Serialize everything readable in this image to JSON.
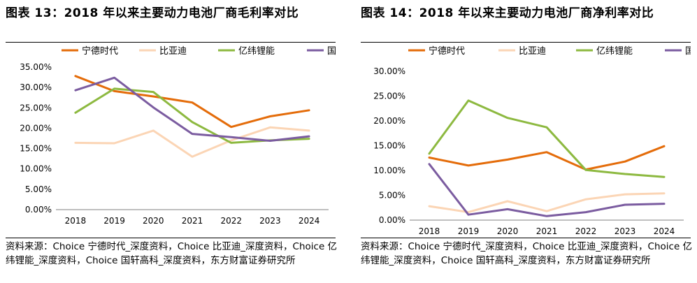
{
  "chart_data": [
    {
      "type": "line",
      "title": "图表 13：2018 年以来主要动力电池厂商毛利率对比",
      "xlabel": "",
      "ylabel": "",
      "categories": [
        "2018",
        "2019",
        "2020",
        "2021",
        "2022",
        "2023",
        "2024"
      ],
      "ylim": [
        0,
        35
      ],
      "yticks": [
        "0.00%",
        "5.00%",
        "10.00%",
        "15.00%",
        "20.00%",
        "25.00%",
        "30.00%",
        "35.00%"
      ],
      "legend_position": "top",
      "grid": false,
      "series": [
        {
          "name": "宁德时代",
          "color": "#E46C0A",
          "values": [
            32.8,
            29.1,
            27.8,
            26.3,
            20.3,
            22.9,
            24.4
          ]
        },
        {
          "name": "比亚迪",
          "color": "#FBD5B5",
          "values": [
            16.4,
            16.3,
            19.4,
            13.0,
            17.0,
            20.2,
            19.4
          ]
        },
        {
          "name": "亿纬锂能",
          "color": "#8DB940",
          "values": [
            23.8,
            29.7,
            28.9,
            21.5,
            16.4,
            17.0,
            17.4
          ]
        },
        {
          "name": "国轩高科",
          "color": "#7B5CA0",
          "values": [
            29.3,
            32.4,
            25.1,
            18.6,
            17.8,
            16.9,
            18.0
          ]
        }
      ],
      "source": "资料来源：Choice 宁德时代_深度资料，Choice 比亚迪_深度资料，Choice 亿纬锂能_深度资料，Choice 国轩高科_深度资料，东方财富证券研究所"
    },
    {
      "type": "line",
      "title": "图表 14：2018 年以来主要动力电池厂商净利率对比",
      "xlabel": "",
      "ylabel": "",
      "categories": [
        "2018",
        "2019",
        "2020",
        "2021",
        "2022",
        "2023",
        "2024"
      ],
      "ylim": [
        0,
        30
      ],
      "yticks": [
        "0.00%",
        "5.00%",
        "10.00%",
        "15.00%",
        "20.00%",
        "25.00%",
        "30.00%"
      ],
      "legend_position": "top",
      "grid": false,
      "series": [
        {
          "name": "宁德时代",
          "color": "#E46C0A",
          "values": [
            12.6,
            11.0,
            12.2,
            13.7,
            10.2,
            11.8,
            14.9
          ]
        },
        {
          "name": "比亚迪",
          "color": "#FBD5B5",
          "values": [
            2.8,
            1.6,
            3.8,
            1.8,
            4.2,
            5.2,
            5.4
          ]
        },
        {
          "name": "亿纬锂能",
          "color": "#8DB940",
          "values": [
            13.4,
            24.1,
            20.6,
            18.7,
            10.1,
            9.3,
            8.7
          ]
        },
        {
          "name": "国轩高科",
          "color": "#7B5CA0",
          "values": [
            11.3,
            1.1,
            2.2,
            0.8,
            1.6,
            3.1,
            3.3
          ]
        }
      ],
      "source": "资料来源：Choice 宁德时代_深度资料，Choice 比亚迪_深度资料，Choice 亿纬锂能_深度资料，Choice 国轩高科_深度资料，东方财富证券研究所"
    }
  ]
}
